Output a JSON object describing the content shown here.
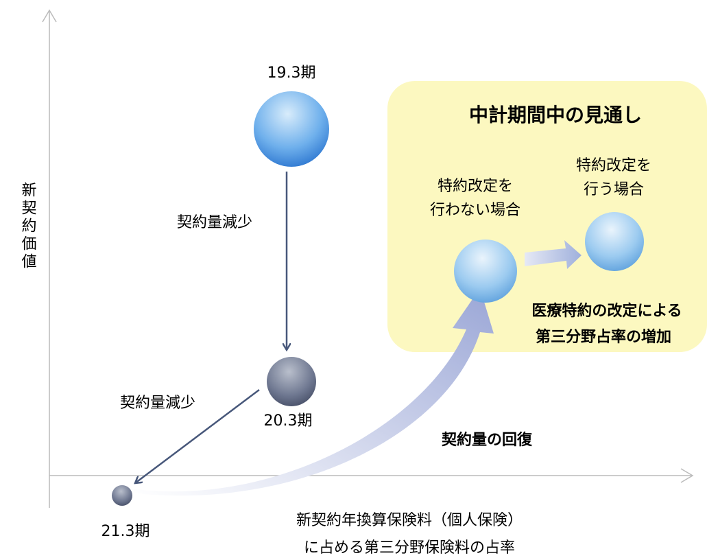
{
  "axes": {
    "y_label": "新契約価値",
    "x_label": [
      "新契約年換算保険料（個人保険）",
      "に占める第三分野保険料の占率"
    ]
  },
  "nodes": [
    {
      "label": [
        "19.3期"
      ]
    },
    {
      "label": [
        "20.3期"
      ]
    },
    {
      "label": [
        "21.3期"
      ]
    },
    {
      "label": [
        "特約改定を",
        "行わない場合"
      ]
    },
    {
      "label": [
        "特約改定を",
        "行う場合"
      ]
    }
  ],
  "arrows": [
    {
      "label": "契約量減少"
    },
    {
      "label": "契約量減少"
    },
    {
      "label": "契約量の回復"
    }
  ],
  "outlook_box": {
    "title": "中計期間中の見通し",
    "note": [
      "医療特約の改定による",
      "第三分野占率の増加"
    ]
  }
}
